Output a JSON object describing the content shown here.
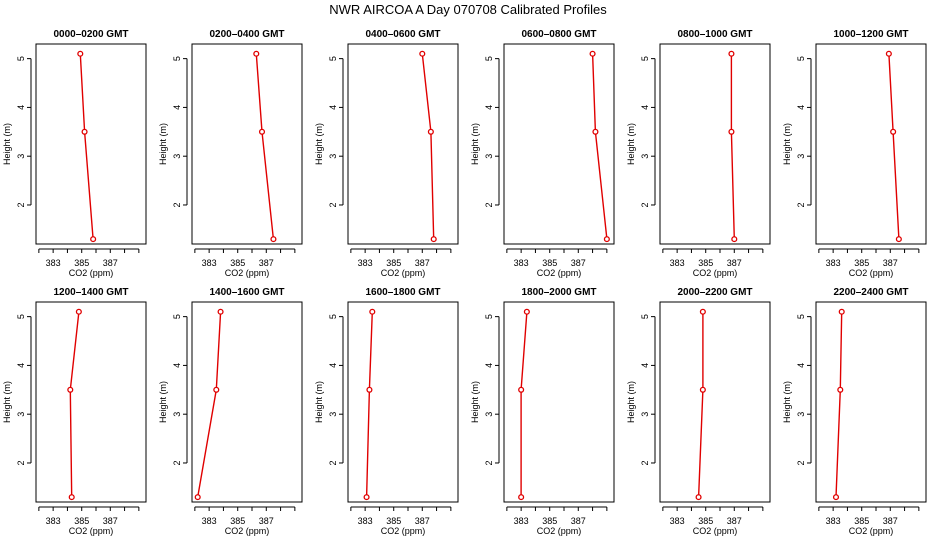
{
  "figure": {
    "title": "NWR AIRCOA A  Day 070708  Calibrated Profiles",
    "line_color": "#e00000",
    "marker_color": "#e00000"
  },
  "chart_data": [
    {
      "type": "line",
      "title": "0000–0200 GMT",
      "xlabel": "CO2 (ppm)",
      "ylabel": "Height (m)",
      "x_ticks": [
        "383",
        "385",
        "387"
      ],
      "y_ticks": [
        "2",
        "3",
        "4",
        "5"
      ],
      "xlim": [
        381.8,
        389.5
      ],
      "ylim": [
        1.2,
        5.3
      ],
      "series": [
        {
          "points": [
            {
              "x": 384.9,
              "y": 5.1
            },
            {
              "x": 385.2,
              "y": 3.5
            },
            {
              "x": 385.8,
              "y": 1.3
            }
          ]
        }
      ]
    },
    {
      "type": "line",
      "title": "0200–0400 GMT",
      "xlabel": "CO2 (ppm)",
      "ylabel": "Height (m)",
      "x_ticks": [
        "383",
        "385",
        "387"
      ],
      "y_ticks": [
        "2",
        "3",
        "4",
        "5"
      ],
      "xlim": [
        381.8,
        389.5
      ],
      "ylim": [
        1.2,
        5.3
      ],
      "series": [
        {
          "points": [
            {
              "x": 386.3,
              "y": 5.1
            },
            {
              "x": 386.7,
              "y": 3.5
            },
            {
              "x": 387.5,
              "y": 1.3
            }
          ]
        }
      ]
    },
    {
      "type": "line",
      "title": "0400–0600 GMT",
      "xlabel": "CO2 (ppm)",
      "ylabel": "Height (m)",
      "x_ticks": [
        "383",
        "385",
        "387"
      ],
      "y_ticks": [
        "2",
        "3",
        "4",
        "5"
      ],
      "xlim": [
        381.8,
        389.5
      ],
      "ylim": [
        1.2,
        5.3
      ],
      "series": [
        {
          "points": [
            {
              "x": 387.0,
              "y": 5.1
            },
            {
              "x": 387.6,
              "y": 3.5
            },
            {
              "x": 387.8,
              "y": 1.3
            }
          ]
        }
      ]
    },
    {
      "type": "line",
      "title": "0600–0800 GMT",
      "xlabel": "CO2 (ppm)",
      "ylabel": "Height (m)",
      "x_ticks": [
        "383",
        "385",
        "387"
      ],
      "y_ticks": [
        "2",
        "3",
        "4",
        "5"
      ],
      "xlim": [
        381.8,
        389.5
      ],
      "ylim": [
        1.2,
        5.3
      ],
      "series": [
        {
          "points": [
            {
              "x": 388.0,
              "y": 5.1
            },
            {
              "x": 388.2,
              "y": 3.5
            },
            {
              "x": 389.0,
              "y": 1.3
            }
          ]
        }
      ]
    },
    {
      "type": "line",
      "title": "0800–1000 GMT",
      "xlabel": "CO2 (ppm)",
      "ylabel": "Height (m)",
      "x_ticks": [
        "383",
        "385",
        "387"
      ],
      "y_ticks": [
        "2",
        "3",
        "4",
        "5"
      ],
      "xlim": [
        381.8,
        389.5
      ],
      "ylim": [
        1.2,
        5.3
      ],
      "series": [
        {
          "points": [
            {
              "x": 386.8,
              "y": 5.1
            },
            {
              "x": 386.8,
              "y": 3.5
            },
            {
              "x": 387.0,
              "y": 1.3
            }
          ]
        }
      ]
    },
    {
      "type": "line",
      "title": "1000–1200 GMT",
      "xlabel": "CO2 (ppm)",
      "ylabel": "Height (m)",
      "x_ticks": [
        "383",
        "385",
        "387"
      ],
      "y_ticks": [
        "2",
        "3",
        "4",
        "5"
      ],
      "xlim": [
        381.8,
        389.5
      ],
      "ylim": [
        1.2,
        5.3
      ],
      "series": [
        {
          "points": [
            {
              "x": 386.9,
              "y": 5.1
            },
            {
              "x": 387.2,
              "y": 3.5
            },
            {
              "x": 387.6,
              "y": 1.3
            }
          ]
        }
      ]
    },
    {
      "type": "line",
      "title": "1200–1400 GMT",
      "xlabel": "CO2 (ppm)",
      "ylabel": "Height (m)",
      "x_ticks": [
        "383",
        "385",
        "387"
      ],
      "y_ticks": [
        "2",
        "3",
        "4",
        "5"
      ],
      "xlim": [
        381.8,
        389.5
      ],
      "ylim": [
        1.2,
        5.3
      ],
      "series": [
        {
          "points": [
            {
              "x": 384.8,
              "y": 5.1
            },
            {
              "x": 384.2,
              "y": 3.5
            },
            {
              "x": 384.3,
              "y": 1.3
            }
          ]
        }
      ]
    },
    {
      "type": "line",
      "title": "1400–1600 GMT",
      "xlabel": "CO2 (ppm)",
      "ylabel": "Height (m)",
      "x_ticks": [
        "383",
        "385",
        "387"
      ],
      "y_ticks": [
        "2",
        "3",
        "4",
        "5"
      ],
      "xlim": [
        381.8,
        389.5
      ],
      "ylim": [
        1.2,
        5.3
      ],
      "series": [
        {
          "points": [
            {
              "x": 383.8,
              "y": 5.1
            },
            {
              "x": 383.5,
              "y": 3.5
            },
            {
              "x": 382.2,
              "y": 1.3
            }
          ]
        }
      ]
    },
    {
      "type": "line",
      "title": "1600–1800 GMT",
      "xlabel": "CO2 (ppm)",
      "ylabel": "Height (m)",
      "x_ticks": [
        "383",
        "385",
        "387"
      ],
      "y_ticks": [
        "2",
        "3",
        "4",
        "5"
      ],
      "xlim": [
        381.8,
        389.5
      ],
      "ylim": [
        1.2,
        5.3
      ],
      "series": [
        {
          "points": [
            {
              "x": 383.5,
              "y": 5.1
            },
            {
              "x": 383.3,
              "y": 3.5
            },
            {
              "x": 383.1,
              "y": 1.3
            }
          ]
        }
      ]
    },
    {
      "type": "line",
      "title": "1800–2000 GMT",
      "xlabel": "CO2 (ppm)",
      "ylabel": "Height (m)",
      "x_ticks": [
        "383",
        "385",
        "387"
      ],
      "y_ticks": [
        "2",
        "3",
        "4",
        "5"
      ],
      "xlim": [
        381.8,
        389.5
      ],
      "ylim": [
        1.2,
        5.3
      ],
      "series": [
        {
          "points": [
            {
              "x": 383.4,
              "y": 5.1
            },
            {
              "x": 383.0,
              "y": 3.5
            },
            {
              "x": 383.0,
              "y": 1.3
            }
          ]
        }
      ]
    },
    {
      "type": "line",
      "title": "2000–2200 GMT",
      "xlabel": "CO2 (ppm)",
      "ylabel": "Height (m)",
      "x_ticks": [
        "383",
        "385",
        "387"
      ],
      "y_ticks": [
        "2",
        "3",
        "4",
        "5"
      ],
      "xlim": [
        381.8,
        389.5
      ],
      "ylim": [
        1.2,
        5.3
      ],
      "series": [
        {
          "points": [
            {
              "x": 384.8,
              "y": 5.1
            },
            {
              "x": 384.8,
              "y": 3.5
            },
            {
              "x": 384.5,
              "y": 1.3
            }
          ]
        }
      ]
    },
    {
      "type": "line",
      "title": "2200–2400 GMT",
      "xlabel": "CO2 (ppm)",
      "ylabel": "Height (m)",
      "x_ticks": [
        "383",
        "385",
        "387"
      ],
      "y_ticks": [
        "2",
        "3",
        "4",
        "5"
      ],
      "xlim": [
        381.8,
        389.5
      ],
      "ylim": [
        1.2,
        5.3
      ],
      "series": [
        {
          "points": [
            {
              "x": 383.6,
              "y": 5.1
            },
            {
              "x": 383.5,
              "y": 3.5
            },
            {
              "x": 383.2,
              "y": 1.3
            }
          ]
        }
      ]
    }
  ]
}
